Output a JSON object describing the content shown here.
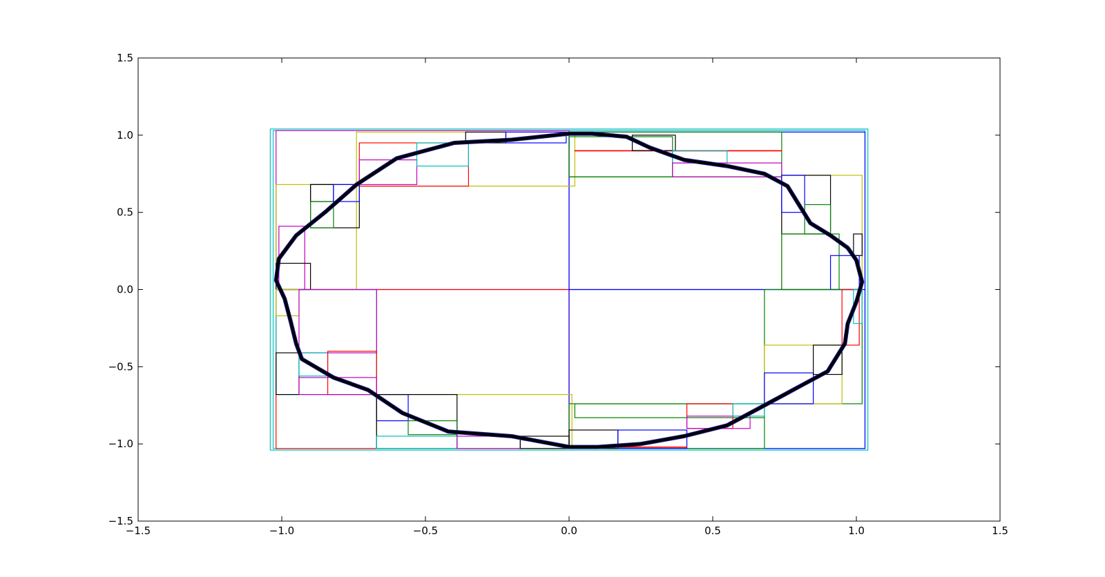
{
  "chart_data": {
    "type": "line",
    "title": "",
    "xlabel": "",
    "ylabel": "",
    "xlim": [
      -1.5,
      1.5
    ],
    "ylim": [
      -1.5,
      1.5
    ],
    "x_ticks": [
      -1.5,
      -1.0,
      -0.5,
      0.0,
      0.5,
      1.0,
      1.5
    ],
    "y_ticks": [
      -1.5,
      -1.0,
      -0.5,
      0.0,
      0.5,
      1.0,
      1.5
    ],
    "x_tick_labels": [
      "−1.5",
      "−1.0",
      "−0.5",
      "0.0",
      "0.5",
      "1.0",
      "1.5"
    ],
    "y_tick_labels": [
      "−1.5",
      "−1.0",
      "−0.5",
      "0.0",
      "0.5",
      "1.0",
      "1.5"
    ],
    "grid": false,
    "legend": "none",
    "curve": {
      "color": "#000000",
      "points": [
        [
          1.0,
          0.19
        ],
        [
          0.97,
          0.27
        ],
        [
          0.91,
          0.35
        ],
        [
          0.84,
          0.43
        ],
        [
          0.8,
          0.55
        ],
        [
          0.76,
          0.67
        ],
        [
          0.68,
          0.75
        ],
        [
          0.55,
          0.8
        ],
        [
          0.4,
          0.84
        ],
        [
          0.28,
          0.92
        ],
        [
          0.2,
          0.99
        ],
        [
          0.08,
          1.01
        ],
        [
          0.0,
          1.01
        ],
        [
          -0.2,
          0.97
        ],
        [
          -0.4,
          0.95
        ],
        [
          -0.6,
          0.85
        ],
        [
          -0.74,
          0.68
        ],
        [
          -0.85,
          0.5
        ],
        [
          -0.95,
          0.35
        ],
        [
          -1.01,
          0.2
        ],
        [
          -1.02,
          0.06
        ],
        [
          -0.99,
          -0.06
        ],
        [
          -0.97,
          -0.2
        ],
        [
          -0.95,
          -0.35
        ],
        [
          -0.93,
          -0.45
        ],
        [
          -0.82,
          -0.57
        ],
        [
          -0.7,
          -0.65
        ],
        [
          -0.58,
          -0.8
        ],
        [
          -0.42,
          -0.92
        ],
        [
          -0.2,
          -0.95
        ],
        [
          0.0,
          -1.02
        ],
        [
          0.1,
          -1.02
        ],
        [
          0.25,
          -1.0
        ],
        [
          0.4,
          -0.95
        ],
        [
          0.55,
          -0.88
        ],
        [
          0.68,
          -0.75
        ],
        [
          0.8,
          -0.63
        ],
        [
          0.9,
          -0.53
        ],
        [
          0.96,
          -0.35
        ],
        [
          0.97,
          -0.22
        ],
        [
          1.0,
          -0.08
        ],
        [
          1.02,
          0.05
        ],
        [
          1.0,
          0.19
        ]
      ]
    },
    "rectangles": [
      {
        "x0": -1.04,
        "y0": -1.04,
        "x1": 1.04,
        "y1": 1.04,
        "color": "#00bfbf"
      },
      {
        "x0": -1.03,
        "y0": -1.03,
        "x1": 1.03,
        "y1": 1.03,
        "color": "#00bfbf"
      },
      {
        "x0": -1.02,
        "y0": 0.0,
        "x1": 0.0,
        "y1": 1.03,
        "color": "#bf00bf"
      },
      {
        "x0": 0.0,
        "y0": 0.0,
        "x1": 1.03,
        "y1": 1.02,
        "color": "#0000ff"
      },
      {
        "x0": -1.02,
        "y0": -1.03,
        "x1": 0.0,
        "y1": 0.0,
        "color": "#ff0000"
      },
      {
        "x0": 0.0,
        "y0": -1.03,
        "x1": 1.03,
        "y1": 0.0,
        "color": "#0000ff"
      },
      {
        "x0": -0.74,
        "y0": 0.67,
        "x1": 0.02,
        "y1": 1.02,
        "color": "#bfbf00"
      },
      {
        "x0": -1.02,
        "y0": 0.0,
        "x1": -0.74,
        "y1": 0.68,
        "color": "#bfbf00"
      },
      {
        "x0": -0.73,
        "y0": 0.67,
        "x1": -0.35,
        "y1": 0.95,
        "color": "#ff0000"
      },
      {
        "x0": -0.73,
        "y0": 0.68,
        "x1": -0.53,
        "y1": 0.84,
        "color": "#bf00bf"
      },
      {
        "x0": -0.53,
        "y0": 0.8,
        "x1": -0.35,
        "y1": 0.95,
        "color": "#00bfbf"
      },
      {
        "x0": -0.36,
        "y0": 0.95,
        "x1": -0.22,
        "y1": 1.02,
        "color": "#000000"
      },
      {
        "x0": -0.22,
        "y0": 0.95,
        "x1": -0.01,
        "y1": 1.02,
        "color": "#0000ff"
      },
      {
        "x0": -0.9,
        "y0": 0.4,
        "x1": -0.73,
        "y1": 0.68,
        "color": "#000000"
      },
      {
        "x0": -0.9,
        "y0": 0.57,
        "x1": -0.82,
        "y1": 0.68,
        "color": "#000000"
      },
      {
        "x0": -0.9,
        "y0": 0.4,
        "x1": -0.82,
        "y1": 0.57,
        "color": "#008000"
      },
      {
        "x0": -0.82,
        "y0": 0.57,
        "x1": -0.73,
        "y1": 0.68,
        "color": "#0000ff"
      },
      {
        "x0": -1.01,
        "y0": 0.0,
        "x1": -0.92,
        "y1": 0.41,
        "color": "#bf00bf"
      },
      {
        "x0": -1.02,
        "y0": 0.0,
        "x1": -0.9,
        "y1": 0.17,
        "color": "#000000"
      },
      {
        "x0": 0.0,
        "y0": 0.73,
        "x1": 0.74,
        "y1": 1.02,
        "color": "#008000"
      },
      {
        "x0": 0.0,
        "y0": 0.73,
        "x1": 0.36,
        "y1": 0.99,
        "color": "#008000"
      },
      {
        "x0": 0.02,
        "y0": 0.9,
        "x1": 0.74,
        "y1": 0.9,
        "color": "#ff0000"
      },
      {
        "x0": 0.22,
        "y0": 0.9,
        "x1": 0.37,
        "y1": 1.0,
        "color": "#000000"
      },
      {
        "x0": 0.36,
        "y0": 0.82,
        "x1": 0.55,
        "y1": 0.9,
        "color": "#00bfbf"
      },
      {
        "x0": 0.36,
        "y0": 0.73,
        "x1": 0.74,
        "y1": 0.82,
        "color": "#bf00bf"
      },
      {
        "x0": 0.74,
        "y0": 0.0,
        "x1": 1.02,
        "y1": 0.74,
        "color": "#bfbf00"
      },
      {
        "x0": 0.74,
        "y0": 0.36,
        "x1": 0.91,
        "y1": 0.74,
        "color": "#000000"
      },
      {
        "x0": 0.74,
        "y0": 0.5,
        "x1": 0.82,
        "y1": 0.74,
        "color": "#0000ff"
      },
      {
        "x0": 0.82,
        "y0": 0.36,
        "x1": 0.91,
        "y1": 0.55,
        "color": "#008000"
      },
      {
        "x0": 0.74,
        "y0": 0.0,
        "x1": 0.94,
        "y1": 0.36,
        "color": "#008000"
      },
      {
        "x0": 0.91,
        "y0": 0.0,
        "x1": 1.01,
        "y1": 0.22,
        "color": "#0000ff"
      },
      {
        "x0": 0.99,
        "y0": 0.22,
        "x1": 1.02,
        "y1": 0.36,
        "color": "#000000"
      },
      {
        "x0": -1.02,
        "y0": -0.68,
        "x1": -0.67,
        "y1": 0.0,
        "color": "#00bfbf"
      },
      {
        "x0": -1.02,
        "y0": -0.17,
        "x1": -0.94,
        "y1": 0.0,
        "color": "#bfbf00"
      },
      {
        "x0": -0.94,
        "y0": -0.41,
        "x1": -0.67,
        "y1": 0.0,
        "color": "#bf00bf"
      },
      {
        "x0": -1.02,
        "y0": -0.68,
        "x1": -0.94,
        "y1": -0.41,
        "color": "#000000"
      },
      {
        "x0": -0.94,
        "y0": -0.56,
        "x1": -0.84,
        "y1": -0.41,
        "color": "#00bfbf"
      },
      {
        "x0": -0.84,
        "y0": -0.68,
        "x1": -0.67,
        "y1": -0.4,
        "color": "#ff0000"
      },
      {
        "x0": -0.94,
        "y0": -0.68,
        "x1": -0.67,
        "y1": -0.57,
        "color": "#bf00bf"
      },
      {
        "x0": -0.67,
        "y0": -1.03,
        "x1": 0.01,
        "y1": -0.68,
        "color": "#bfbf00"
      },
      {
        "x0": -0.67,
        "y0": -0.85,
        "x1": -0.56,
        "y1": -0.68,
        "color": "#0000ff"
      },
      {
        "x0": -0.67,
        "y0": -1.03,
        "x1": -0.39,
        "y1": -0.68,
        "color": "#000000"
      },
      {
        "x0": -0.56,
        "y0": -0.94,
        "x1": -0.39,
        "y1": -0.85,
        "color": "#008000"
      },
      {
        "x0": -0.67,
        "y0": -1.03,
        "x1": -0.39,
        "y1": -0.95,
        "color": "#00bfbf"
      },
      {
        "x0": -0.39,
        "y0": -1.03,
        "x1": -0.17,
        "y1": -0.95,
        "color": "#bf00bf"
      },
      {
        "x0": -0.17,
        "y0": -1.03,
        "x1": 0.0,
        "y1": -0.95,
        "color": "#000000"
      },
      {
        "x0": 0.02,
        "y0": -0.83,
        "x1": 0.68,
        "y1": -0.74,
        "color": "#008000"
      },
      {
        "x0": 0.0,
        "y0": -1.03,
        "x1": 0.68,
        "y1": -0.74,
        "color": "#008000"
      },
      {
        "x0": 0.0,
        "y0": -1.03,
        "x1": 0.17,
        "y1": -0.91,
        "color": "#000000"
      },
      {
        "x0": 0.17,
        "y0": -1.03,
        "x1": 0.41,
        "y1": -0.91,
        "color": "#0000ff"
      },
      {
        "x0": 0.17,
        "y0": -1.02,
        "x1": 0.41,
        "y1": -1.02,
        "color": "#ff0000"
      },
      {
        "x0": 0.41,
        "y0": -0.9,
        "x1": 0.57,
        "y1": -0.74,
        "color": "#ff0000"
      },
      {
        "x0": 0.41,
        "y0": -0.9,
        "x1": 0.63,
        "y1": -0.82,
        "color": "#bf00bf"
      },
      {
        "x0": 0.57,
        "y0": -0.82,
        "x1": 0.68,
        "y1": -0.74,
        "color": "#00bfbf"
      },
      {
        "x0": 0.68,
        "y0": -0.74,
        "x1": 1.02,
        "y1": 0.0,
        "color": "#008000"
      },
      {
        "x0": 0.68,
        "y0": -0.74,
        "x1": 0.95,
        "y1": -0.36,
        "color": "#bfbf00"
      },
      {
        "x0": 0.68,
        "y0": -0.74,
        "x1": 0.85,
        "y1": -0.54,
        "color": "#0000ff"
      },
      {
        "x0": 0.85,
        "y0": -0.55,
        "x1": 0.95,
        "y1": -0.36,
        "color": "#000000"
      },
      {
        "x0": 0.95,
        "y0": -0.36,
        "x1": 1.01,
        "y1": 0.0,
        "color": "#ff0000"
      },
      {
        "x0": 0.99,
        "y0": -0.22,
        "x1": 1.02,
        "y1": 0.0,
        "color": "#00bfbf"
      }
    ]
  }
}
